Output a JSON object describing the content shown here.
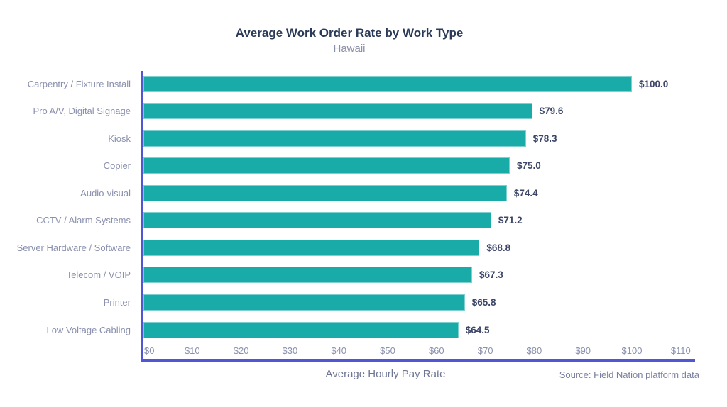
{
  "chart_data": {
    "type": "bar",
    "orientation": "horizontal",
    "title": "Average Work Order Rate by Work Type",
    "subtitle": "Hawaii",
    "xlabel": "Average Hourly Pay Rate",
    "source": "Source: Field Nation platform data",
    "categories": [
      "Carpentry / Fixture Install",
      "Pro A/V, Digital Signage",
      "Kiosk",
      "Copier",
      "Audio-visual",
      "CCTV / Alarm Systems",
      "Server Hardware / Software",
      "Telecom / VOIP",
      "Printer",
      "Low Voltage Cabling"
    ],
    "values": [
      100.0,
      79.6,
      78.3,
      75.0,
      74.4,
      71.2,
      68.8,
      67.3,
      65.8,
      64.5
    ],
    "value_labels": [
      "$100.0",
      "$79.6",
      "$78.3",
      "$75.0",
      "$74.4",
      "$71.2",
      "$68.8",
      "$67.3",
      "$65.8",
      "$64.5"
    ],
    "x_ticks": [
      {
        "value": 0,
        "label": "$0"
      },
      {
        "value": 10,
        "label": "$10"
      },
      {
        "value": 20,
        "label": "$20"
      },
      {
        "value": 30,
        "label": "$30"
      },
      {
        "value": 40,
        "label": "$40"
      },
      {
        "value": 50,
        "label": "$50"
      },
      {
        "value": 60,
        "label": "$60"
      },
      {
        "value": 70,
        "label": "$70"
      },
      {
        "value": 80,
        "label": "$80"
      },
      {
        "value": 90,
        "label": "$90"
      },
      {
        "value": 100,
        "label": "$100"
      },
      {
        "value": 110,
        "label": "$110"
      }
    ],
    "xlim": [
      0,
      110
    ],
    "grid": false,
    "legend": false,
    "colors": {
      "bar": "#18ABA8",
      "bar_edge": "#7ED0D0",
      "axis": "#5156D6",
      "title": "#2A3A58",
      "subtitle": "#8A8FA8",
      "category_label": "#8A90AE",
      "value_label": "#3C4668",
      "tick_label": "#8A90AE",
      "xlabel": "#6E7694",
      "source": "#7A80A0"
    }
  }
}
